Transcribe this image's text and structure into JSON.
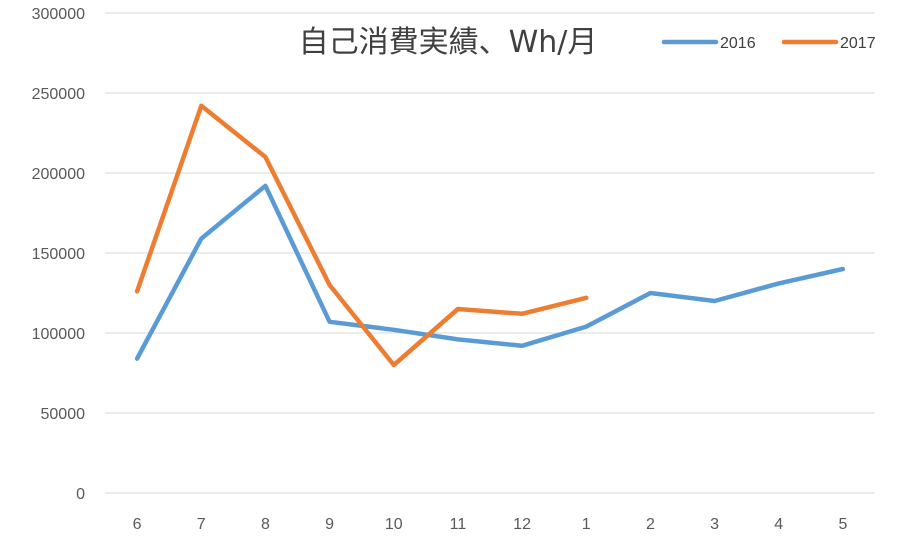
{
  "chart_data": {
    "type": "line",
    "title": "自己消費実績、Wh/月",
    "categories": [
      "6",
      "7",
      "8",
      "9",
      "10",
      "11",
      "12",
      "1",
      "2",
      "3",
      "4",
      "5"
    ],
    "ylim": [
      0,
      300000
    ],
    "yticks": [
      0,
      50000,
      100000,
      150000,
      200000,
      250000,
      300000
    ],
    "ytick_labels": [
      "0",
      "50000",
      "100000",
      "150000",
      "200000",
      "250000",
      "300000"
    ],
    "grid": true,
    "legend_position": "top-right",
    "series": [
      {
        "name": "2016",
        "color": "#5B9BD5",
        "values": [
          84000,
          159000,
          192000,
          107000,
          102000,
          96000,
          92000,
          104000,
          125000,
          120000,
          131000,
          140000
        ]
      },
      {
        "name": "2017",
        "color": "#ED7D31",
        "values": [
          126000,
          242000,
          210000,
          130000,
          80000,
          115000,
          112000,
          122000,
          null,
          null,
          null,
          null
        ]
      }
    ]
  }
}
